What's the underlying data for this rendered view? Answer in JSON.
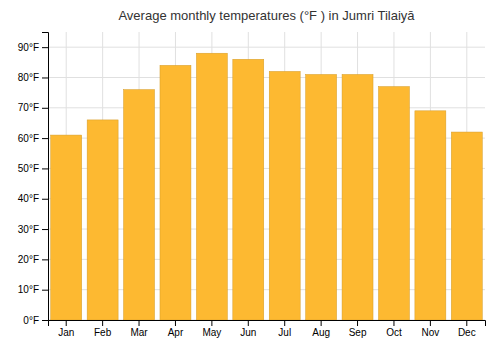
{
  "chart_data": {
    "type": "bar",
    "title": "Average monthly temperatures (°F ) in Jumri Tilaiyā",
    "categories": [
      "Jan",
      "Feb",
      "Mar",
      "Apr",
      "May",
      "Jun",
      "Jul",
      "Aug",
      "Sep",
      "Oct",
      "Nov",
      "Dec"
    ],
    "values": [
      61,
      66,
      76,
      84,
      88,
      86,
      82,
      81,
      81,
      77,
      69,
      62
    ],
    "color": "#FDB931",
    "ylim": [
      0,
      95
    ],
    "yticks": [
      {
        "value": 0,
        "label": "0°F"
      },
      {
        "value": 10,
        "label": "10°F"
      },
      {
        "value": 20,
        "label": "20°F"
      },
      {
        "value": 30,
        "label": "30°F"
      },
      {
        "value": 40,
        "label": "40°F"
      },
      {
        "value": 50,
        "label": "50°F"
      },
      {
        "value": 60,
        "label": "60°F"
      },
      {
        "value": 70,
        "label": "70°F"
      },
      {
        "value": 80,
        "label": "80°F"
      },
      {
        "value": 90,
        "label": "90°F"
      }
    ],
    "grid": true
  }
}
